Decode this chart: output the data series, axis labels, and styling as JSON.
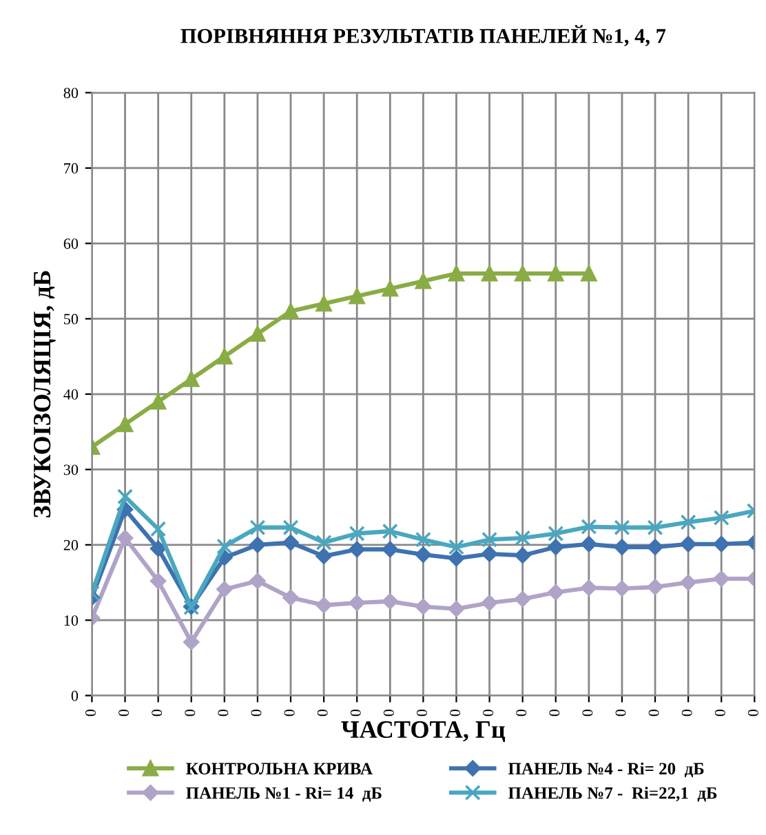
{
  "chart_data": {
    "type": "line",
    "title": "ПОРІВНЯННЯ РЕЗУЛЬТАТІВ ПАНЕЛЕЙ №1, 4, 7",
    "xlabel": "ЧАСТОТА, Гц",
    "ylabel": "ЗВУКОІЗОЛЯЦІЯ, дБ",
    "categories": [
      "0",
      "0",
      "0",
      "0",
      "0",
      "0",
      "0",
      "0",
      "0",
      "0",
      "0",
      "0",
      "0",
      "0",
      "0",
      "0",
      "0",
      "0",
      "0",
      "0",
      "0"
    ],
    "series": [
      {
        "name": "КОНТРОЛЬНА КРИВА",
        "color": "#8aac45",
        "marker": "triangle",
        "values": [
          33,
          36,
          39,
          42,
          45,
          48,
          51,
          52,
          53,
          54,
          55,
          56,
          56,
          56,
          56,
          56,
          null,
          null,
          null,
          null,
          null
        ]
      },
      {
        "name": "ПАНЕЛЬ №1 - Ri= 14  дБ",
        "color": "#b0a3c8",
        "marker": "diamond",
        "values": [
          10.3,
          20.9,
          15.2,
          7.1,
          14.1,
          15.2,
          13.0,
          12.0,
          12.3,
          12.5,
          11.8,
          11.5,
          12.3,
          12.8,
          13.7,
          14.3,
          14.2,
          14.4,
          15.0,
          15.5,
          15.5
        ]
      },
      {
        "name": "ПАНЕЛЬ №4 - Ri= 20  дБ",
        "color": "#3e72b0",
        "marker": "diamond",
        "values": [
          13.0,
          24.7,
          19.5,
          11.8,
          18.3,
          20.0,
          20.3,
          18.5,
          19.4,
          19.4,
          18.7,
          18.2,
          18.8,
          18.6,
          19.7,
          20.1,
          19.7,
          19.7,
          20.1,
          20.1,
          20.3
        ]
      },
      {
        "name": "ПАНЕЛЬ №7 -  Ri=22,1  дБ",
        "color": "#4aa7c0",
        "marker": "cross",
        "values": [
          13.6,
          26.4,
          22.1,
          11.7,
          19.8,
          22.3,
          22.3,
          20.3,
          21.5,
          21.8,
          20.7,
          19.7,
          20.7,
          20.9,
          21.5,
          22.4,
          22.3,
          22.3,
          23.0,
          23.6,
          24.5
        ]
      }
    ],
    "ylim": [
      0,
      80
    ],
    "yticks": [
      0,
      10,
      20,
      30,
      40,
      50,
      60,
      70,
      80
    ],
    "grid": true,
    "legend": "bottom",
    "line_style": "solid"
  }
}
